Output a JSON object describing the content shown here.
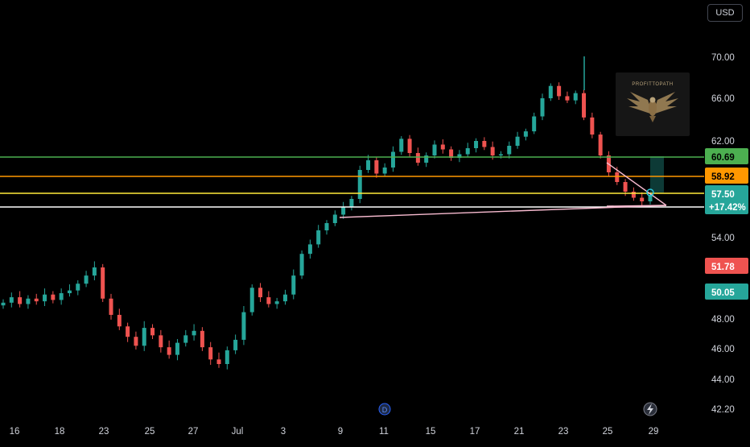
{
  "toolbar": {
    "currency_label": "USD"
  },
  "watermark": {
    "brand_text": "PROFITTOPATH"
  },
  "colors": {
    "background": "#000000",
    "up": "#26a69a",
    "down": "#ef5350",
    "line_green": "#4caf50",
    "line_orange": "#ff9800",
    "line_yellow": "#ffeb3b",
    "line_white": "#ffffff",
    "pattern": "#f8bbd0"
  },
  "chart_data": {
    "type": "candlestick",
    "y_ticks": [
      "70.00",
      "66.00",
      "62.00",
      "54.00",
      "48.00",
      "46.00",
      "44.00",
      "42.20"
    ],
    "x_ticks": [
      "16",
      "18",
      "23",
      "25",
      "27",
      "Jul",
      "3",
      "9",
      "11",
      "15",
      "17",
      "21",
      "23",
      "25",
      "29"
    ],
    "grid": false,
    "price_tags": [
      {
        "text": "60.69",
        "value": 60.69,
        "bg": "#4caf50",
        "fg": "#000000",
        "line": true
      },
      {
        "text": "58.92",
        "value": 58.92,
        "bg": "#ff9800",
        "fg": "#000000",
        "line": true
      },
      {
        "text": "57.50",
        "value": 57.5,
        "bg": "#26a69a",
        "fg": "#ffffff",
        "line": true,
        "subtext": "+17.42%"
      },
      {
        "text": "51.78",
        "value": 51.78,
        "bg": "#ef5350",
        "fg": "#ffffff",
        "line": false
      },
      {
        "text": "50.05",
        "value": 50.05,
        "bg": "#26a69a",
        "fg": "#ffffff",
        "line": false
      }
    ],
    "horizontal_levels": [
      60.69,
      58.92,
      57.5,
      56.9
    ],
    "annotations": {
      "rising_trendline": [
        [
          "Jul 9",
          55.8
        ],
        [
          "Jul 29",
          57.0
        ]
      ],
      "falling_trendline": [
        [
          "Jul 25",
          59.8
        ],
        [
          "Jul 29",
          57.0
        ]
      ],
      "session_markers": [
        "D",
        "lightning"
      ]
    },
    "series": [
      {
        "sample_closes": [
          49.2,
          49.6,
          49.1,
          49.5,
          49.3,
          49.8,
          49.4,
          49.9,
          50.1,
          50.6,
          51.2,
          51.8,
          49.5,
          48.3,
          47.5,
          46.8,
          46.2,
          47.4,
          46.9,
          46.1,
          45.6,
          46.4,
          46.9,
          47.2,
          46.1,
          45.3,
          45.0,
          45.9,
          46.6,
          48.5,
          50.3,
          49.6,
          49.1,
          49.3,
          49.8,
          51.2,
          52.8,
          53.5,
          54.6,
          55.2,
          55.9,
          56.5,
          57.2,
          59.6,
          60.4,
          59.3,
          59.8,
          61.1,
          62.2,
          61.0,
          60.2,
          60.8,
          61.7,
          61.3,
          60.6,
          60.9,
          61.4,
          62.0,
          61.5,
          60.8,
          60.9,
          61.6,
          62.4,
          62.9,
          64.3,
          66.0,
          67.2,
          66.2,
          65.8,
          66.5,
          64.2,
          62.6,
          60.8,
          59.4,
          58.6,
          57.8,
          57.3,
          57.0,
          57.5
        ]
      }
    ]
  }
}
